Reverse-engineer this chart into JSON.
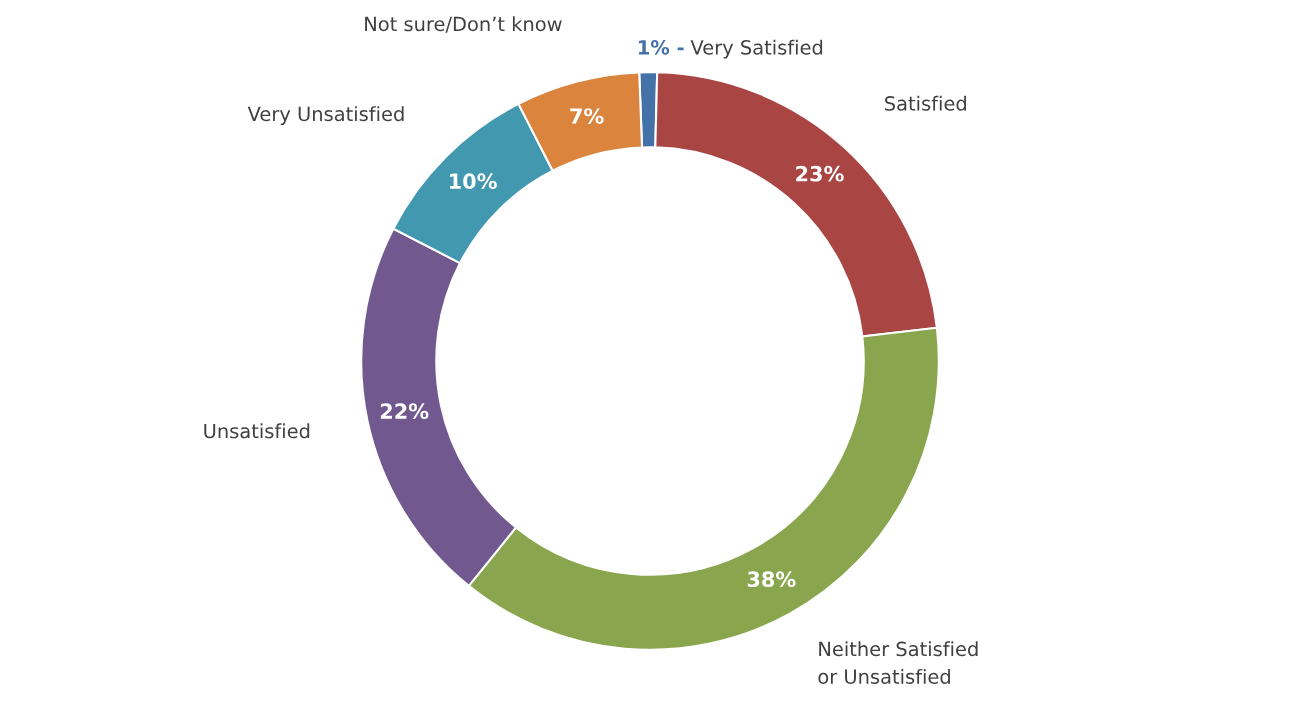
{
  "chart_data": {
    "type": "donut",
    "categories": [
      "Very Satisfied",
      "Satisfied",
      "Neither Satisfied\nor Unsatisfied",
      "Unsatisfied",
      "Very Unsatisfied",
      "Not sure/Don’t know"
    ],
    "values": [
      1,
      23,
      38,
      22,
      10,
      7
    ],
    "value_labels": [
      "1% -",
      "23%",
      "38%",
      "22%",
      "10%",
      "7%"
    ],
    "colors": [
      "#4472a8",
      "#a94644",
      "#89a54e",
      "#71588f",
      "#4198af",
      "#db843d"
    ],
    "legend": false
  }
}
